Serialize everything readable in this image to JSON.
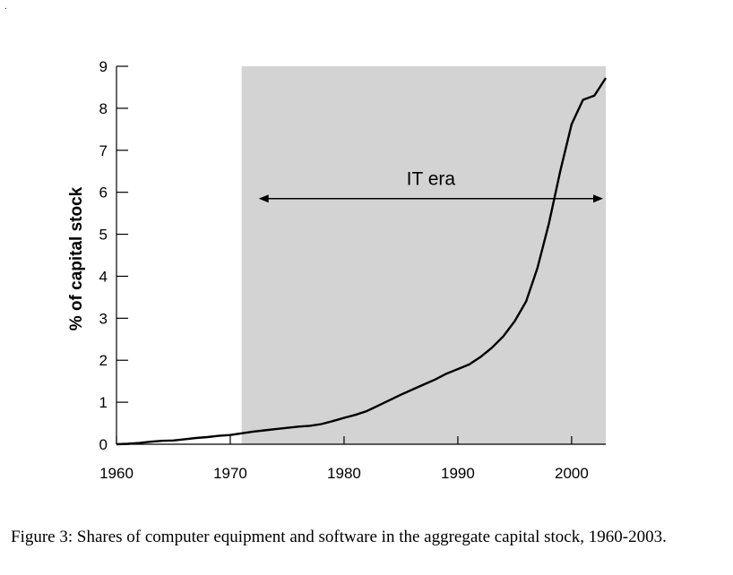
{
  "corner_mark": ".",
  "caption": "Figure 3: Shares of computer equipment and software in the aggregate capital stock, 1960-2003.",
  "chart_data": {
    "type": "line",
    "title": "",
    "xlabel": "",
    "ylabel": "% of capital stock",
    "xlim": [
      1960,
      2003
    ],
    "ylim": [
      0,
      9
    ],
    "x_ticks": [
      1960,
      1970,
      1980,
      1990,
      2000
    ],
    "y_ticks": [
      0,
      1,
      2,
      3,
      4,
      5,
      6,
      7,
      8,
      9
    ],
    "grid": false,
    "shaded_region": {
      "x_start": 1971,
      "x_end": 2003,
      "color": "#d3d3d3"
    },
    "annotation": {
      "text": "IT era",
      "x_from": 1972.5,
      "x_to": 2003,
      "y": 5.85
    },
    "series": [
      {
        "x": [
          1960,
          1961,
          1962,
          1963,
          1964,
          1965,
          1966,
          1967,
          1968,
          1969,
          1970,
          1971,
          1972,
          1973,
          1974,
          1975,
          1976,
          1977,
          1978,
          1979,
          1980,
          1981,
          1982,
          1983,
          1984,
          1985,
          1986,
          1987,
          1988,
          1989,
          1990,
          1991,
          1992,
          1993,
          1994,
          1995,
          1996,
          1997,
          1998,
          1999,
          2000,
          2001,
          2002,
          2003
        ],
        "y": [
          0.0,
          0.01,
          0.03,
          0.06,
          0.08,
          0.09,
          0.12,
          0.15,
          0.17,
          0.2,
          0.22,
          0.26,
          0.3,
          0.33,
          0.36,
          0.39,
          0.42,
          0.44,
          0.48,
          0.55,
          0.63,
          0.7,
          0.79,
          0.92,
          1.05,
          1.18,
          1.3,
          1.42,
          1.54,
          1.68,
          1.79,
          1.9,
          2.08,
          2.3,
          2.57,
          2.93,
          3.4,
          4.2,
          5.25,
          6.5,
          7.62,
          8.2,
          8.3,
          8.72
        ],
        "color": "#000000"
      }
    ]
  }
}
